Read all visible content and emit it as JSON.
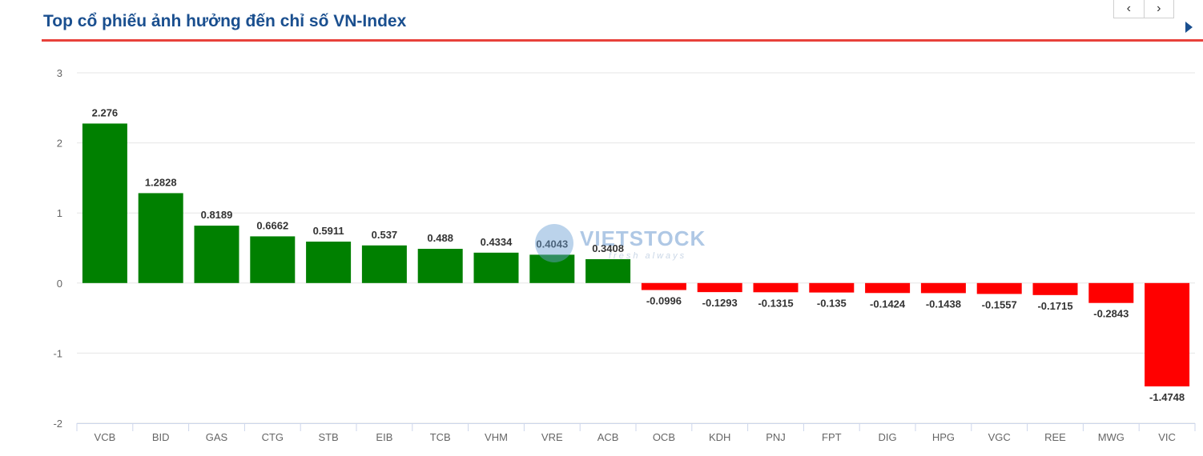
{
  "header": {
    "title": "Top cổ phiếu ảnh hưởng đến chỉ số VN-Index"
  },
  "nav": {
    "prev_label": "‹",
    "next_label": "›"
  },
  "icons": {
    "next_section": "play-triangle-icon"
  },
  "watermark": {
    "brand": "VIETSTOCK",
    "tagline": "fresh always"
  },
  "colors": {
    "positive": "#008000",
    "negative": "#ff0000",
    "title": "#1a4f8f",
    "rule": "#e8413b"
  },
  "chart_data": {
    "type": "bar",
    "title": "",
    "xlabel": "",
    "ylabel": "",
    "ylim": [
      -2,
      3
    ],
    "yticks": [
      3,
      2,
      1,
      0,
      -1,
      -2
    ],
    "grid": true,
    "categories": [
      "VCB",
      "BID",
      "GAS",
      "CTG",
      "STB",
      "EIB",
      "TCB",
      "VHM",
      "VRE",
      "ACB",
      "OCB",
      "KDH",
      "PNJ",
      "FPT",
      "DIG",
      "HPG",
      "VGC",
      "REE",
      "MWG",
      "VIC"
    ],
    "values": [
      2.276,
      1.2828,
      0.8189,
      0.6662,
      0.5911,
      0.537,
      0.488,
      0.4334,
      0.4043,
      0.3408,
      -0.0996,
      -0.1293,
      -0.1315,
      -0.135,
      -0.1424,
      -0.1438,
      -0.1557,
      -0.1715,
      -0.2843,
      -1.4748
    ],
    "value_labels": [
      "2.276",
      "1.2828",
      "0.8189",
      "0.6662",
      "0.5911",
      "0.537",
      "0.488",
      "0.4334",
      "0.4043",
      "0.3408",
      "-0.0996",
      "-0.1293",
      "-0.1315",
      "-0.135",
      "-0.1424",
      "-0.1438",
      "-0.1557",
      "-0.1715",
      "-0.2843",
      "-1.4748"
    ]
  }
}
